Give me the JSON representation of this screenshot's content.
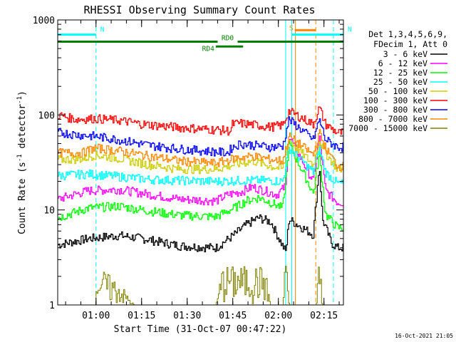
{
  "chart_data": {
    "type": "line",
    "title": "RHESSI Observing Summary Count Rates",
    "xlabel": "Start Time (31-Oct-07 00:47:22)",
    "ylabel_main": "Count Rate (s",
    "ylabel_sup1": "-1",
    "ylabel_mid": " detector",
    "ylabel_sup2": "-1",
    "ylabel_end": ")",
    "yscale": "log",
    "ylim": [
      1,
      1000
    ],
    "x_unit": "minutes after 00:47:22",
    "xlim": [
      0,
      94
    ],
    "x_ticks": [
      {
        "label": "01:00",
        "value": 12.6
      },
      {
        "label": "01:15",
        "value": 27.6
      },
      {
        "label": "01:30",
        "value": 42.6
      },
      {
        "label": "01:45",
        "value": 57.6
      },
      {
        "label": "02:00",
        "value": 72.6
      },
      {
        "label": "02:15",
        "value": 87.6
      }
    ],
    "y_ticks": [
      {
        "label": "1",
        "value": 1
      },
      {
        "label": "10",
        "value": 10
      },
      {
        "label": "100",
        "value": 100
      },
      {
        "label": "1000",
        "value": 1000
      }
    ],
    "footer_date": "16-Oct-2021 21:05",
    "legend": {
      "header1": "Det 1,3,4,5,6,9,",
      "header2": "FDecim 1, Att 0",
      "placement": "right"
    },
    "series": [
      {
        "name": "3 - 6 keV",
        "color": "#000000",
        "points": [
          [
            0,
            4.3
          ],
          [
            10,
            5.0
          ],
          [
            20,
            5.4
          ],
          [
            28,
            5.0
          ],
          [
            40,
            4.2
          ],
          [
            52,
            4.0
          ],
          [
            58,
            5.5
          ],
          [
            62,
            7.0
          ],
          [
            66,
            8.3
          ],
          [
            70,
            7.5
          ],
          [
            73,
            4.8
          ],
          [
            75,
            3.6
          ],
          [
            76,
            8.0
          ],
          [
            84,
            5.5
          ],
          [
            86,
            30
          ],
          [
            87,
            8.0
          ],
          [
            90,
            4.5
          ],
          [
            92,
            4.0
          ]
        ]
      },
      {
        "name": "6 - 12 keV",
        "color": "#ff00ff",
        "points": [
          [
            0,
            13
          ],
          [
            10,
            16
          ],
          [
            20,
            16.5
          ],
          [
            28,
            15
          ],
          [
            40,
            13
          ],
          [
            52,
            12.5
          ],
          [
            56,
            14.5
          ],
          [
            60,
            15.5
          ],
          [
            64,
            17.5
          ],
          [
            68,
            16
          ],
          [
            72,
            14.5
          ],
          [
            75,
            18
          ],
          [
            76,
            60
          ],
          [
            84,
            20
          ],
          [
            86,
            60
          ],
          [
            88,
            16
          ],
          [
            92,
            12
          ]
        ]
      },
      {
        "name": "12 - 25 keV",
        "color": "#00ff00",
        "points": [
          [
            0,
            8.3
          ],
          [
            10,
            10.5
          ],
          [
            20,
            11
          ],
          [
            28,
            10
          ],
          [
            40,
            8.8
          ],
          [
            52,
            8.5
          ],
          [
            58,
            10.5
          ],
          [
            62,
            12.5
          ],
          [
            66,
            13.5
          ],
          [
            70,
            12
          ],
          [
            74,
            10.5
          ],
          [
            76,
            50
          ],
          [
            84,
            15
          ],
          [
            86,
            40
          ],
          [
            88,
            9
          ],
          [
            92,
            6.5
          ]
        ]
      },
      {
        "name": "25 - 50 keV",
        "color": "#00ffff",
        "points": [
          [
            0,
            23
          ],
          [
            10,
            24
          ],
          [
            20,
            22.5
          ],
          [
            30,
            21
          ],
          [
            40,
            20.5
          ],
          [
            52,
            20
          ],
          [
            60,
            20.5
          ],
          [
            70,
            20.5
          ],
          [
            74,
            20
          ],
          [
            76,
            45
          ],
          [
            84,
            25
          ],
          [
            86,
            45
          ],
          [
            88,
            25
          ],
          [
            92,
            19
          ]
        ]
      },
      {
        "name": "50 - 100 keV",
        "color": "#cccc00",
        "points": [
          [
            0,
            34
          ],
          [
            8,
            34.5
          ],
          [
            12,
            38
          ],
          [
            20,
            35
          ],
          [
            30,
            30
          ],
          [
            40,
            27
          ],
          [
            52,
            27
          ],
          [
            58,
            30
          ],
          [
            64,
            33
          ],
          [
            70,
            29
          ],
          [
            74,
            27
          ],
          [
            76,
            55
          ],
          [
            84,
            30
          ],
          [
            86,
            55
          ],
          [
            88,
            40
          ],
          [
            92,
            27
          ]
        ]
      },
      {
        "name": "100 - 300 keV",
        "color": "#ff0000",
        "points": [
          [
            0,
            100
          ],
          [
            6,
            90
          ],
          [
            12,
            92
          ],
          [
            20,
            88
          ],
          [
            28,
            80
          ],
          [
            40,
            74
          ],
          [
            52,
            70
          ],
          [
            57,
            68
          ],
          [
            57.2,
            80
          ],
          [
            60,
            82
          ],
          [
            70,
            75
          ],
          [
            74,
            78
          ],
          [
            76,
            110
          ],
          [
            84,
            80
          ],
          [
            86,
            120
          ],
          [
            88,
            80
          ],
          [
            92,
            65
          ]
        ]
      },
      {
        "name": "300 - 800 keV",
        "color": "#0000ff",
        "points": [
          [
            0,
            66
          ],
          [
            6,
            62
          ],
          [
            12,
            60
          ],
          [
            20,
            55
          ],
          [
            30,
            48
          ],
          [
            40,
            44
          ],
          [
            52,
            41
          ],
          [
            56,
            40
          ],
          [
            57,
            45
          ],
          [
            60,
            50
          ],
          [
            70,
            46
          ],
          [
            74,
            47
          ],
          [
            76,
            90
          ],
          [
            84,
            55
          ],
          [
            86,
            90
          ],
          [
            88,
            55
          ],
          [
            92,
            46
          ]
        ]
      },
      {
        "name": "800 - 7000 keV",
        "color": "#ff8800",
        "points": [
          [
            0,
            40
          ],
          [
            8,
            40
          ],
          [
            12,
            45
          ],
          [
            20,
            42
          ],
          [
            30,
            37
          ],
          [
            40,
            33
          ],
          [
            52,
            31
          ],
          [
            58,
            35
          ],
          [
            64,
            37
          ],
          [
            70,
            34
          ],
          [
            74,
            33
          ],
          [
            76,
            60
          ],
          [
            84,
            38
          ],
          [
            86,
            65
          ],
          [
            88,
            45
          ],
          [
            92,
            29
          ]
        ]
      },
      {
        "name": "7000 - 15000 keV",
        "color": "#808000",
        "points": [
          [
            0,
            1
          ],
          [
            12.5,
            1
          ],
          [
            12.6,
            2.2
          ],
          [
            20,
            1.6
          ],
          [
            25,
            1.0
          ],
          [
            26,
            1
          ],
          [
            52,
            1
          ],
          [
            54,
            2.2
          ],
          [
            68,
            2.2
          ],
          [
            70,
            1
          ],
          [
            74,
            1
          ],
          [
            75,
            4
          ],
          [
            76,
            1
          ],
          [
            85,
            1
          ],
          [
            86,
            3
          ],
          [
            87,
            1
          ],
          [
            94,
            1
          ]
        ]
      }
    ],
    "annotations": {
      "segments": [
        {
          "label": "N",
          "color": "#00ffff",
          "x1": 0,
          "x2": 12.6,
          "y": 700
        },
        {
          "label": "N",
          "color": "#00ffff",
          "x1": 77,
          "x2": 94,
          "y": 700
        },
        {
          "label": "S",
          "color": "#ff8800",
          "x1": 78,
          "x2": 85,
          "y": 780
        },
        {
          "label": "RD0",
          "color": "#008000",
          "x1": 0,
          "x2": 94,
          "y": 590
        },
        {
          "label": "RD4",
          "color": "#008000",
          "x1": 52,
          "x2": 61,
          "y": 525
        }
      ],
      "vlines": [
        {
          "color": "#00ffff",
          "x": 12.6,
          "style": "dashed"
        },
        {
          "color": "#00ffff",
          "x": 75.0,
          "style": "solid"
        },
        {
          "color": "#00ffff",
          "x": 77.0,
          "style": "solid"
        },
        {
          "color": "#ff8800",
          "x": 78.2,
          "style": "solid"
        },
        {
          "color": "#ff8800",
          "x": 84.9,
          "style": "dashed"
        },
        {
          "color": "#00ffff",
          "x": 90.7,
          "style": "dashed"
        }
      ]
    }
  }
}
